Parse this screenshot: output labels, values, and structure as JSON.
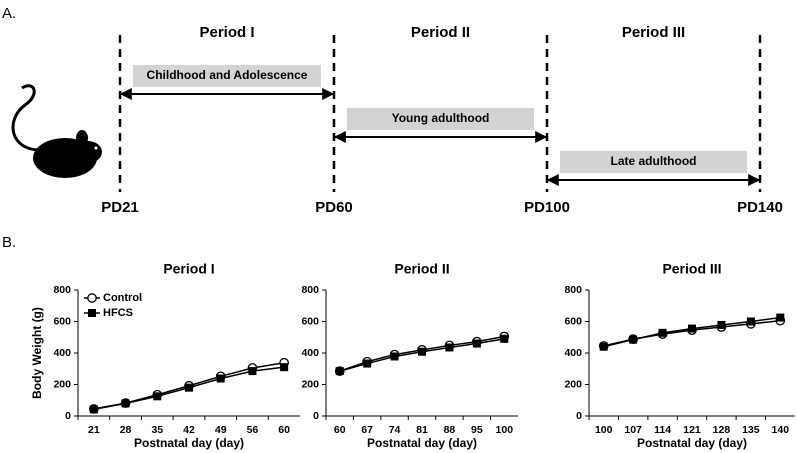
{
  "panel_labels": [
    "A.",
    "B."
  ],
  "timeline": {
    "periods": [
      "Period I",
      "Period II",
      "Period III"
    ],
    "stages": [
      "Childhood and Adolescence",
      "Young adulthood",
      "Late adulthood"
    ],
    "points": [
      "PD21",
      "PD60",
      "PD100",
      "PD140"
    ]
  },
  "chart_data": [
    {
      "type": "line",
      "title": "Period I",
      "ylabel": "Body Weight (g)",
      "xlabel": "Postnatal day (day)",
      "categories": [
        "21",
        "28",
        "35",
        "42",
        "49",
        "56",
        "60"
      ],
      "ylim": [
        0,
        800
      ],
      "yticks": [
        0,
        200,
        400,
        600,
        800
      ],
      "legend": "upper left",
      "series": [
        {
          "name": "Control",
          "color": "#000000",
          "marker": "circle-open",
          "values": [
            45,
            82,
            135,
            192,
            252,
            305,
            338
          ]
        },
        {
          "name": "HFCS",
          "color": "#000000",
          "marker": "square",
          "values": [
            42,
            80,
            125,
            180,
            238,
            285,
            310
          ]
        }
      ]
    },
    {
      "type": "line",
      "title": "Period II",
      "xlabel": "Postnatal day (day)",
      "categories": [
        "60",
        "67",
        "74",
        "81",
        "88",
        "95",
        "100"
      ],
      "ylim": [
        0,
        800
      ],
      "yticks": [
        0,
        200,
        400,
        600,
        800
      ],
      "series": [
        {
          "color": "#000000",
          "marker": "circle-open",
          "values": [
            285,
            345,
            390,
            420,
            448,
            472,
            505
          ]
        },
        {
          "color": "#000000",
          "marker": "square",
          "values": [
            285,
            333,
            378,
            408,
            435,
            460,
            490
          ]
        }
      ]
    },
    {
      "type": "line",
      "title": "Period III",
      "xlabel": "Postnatal day (day)",
      "categories": [
        "100",
        "107",
        "114",
        "121",
        "128",
        "135",
        "140"
      ],
      "ylim": [
        0,
        800
      ],
      "yticks": [
        0,
        200,
        400,
        600,
        800
      ],
      "series": [
        {
          "color": "#000000",
          "marker": "circle-open",
          "values": [
            445,
            488,
            520,
            545,
            565,
            585,
            605
          ]
        },
        {
          "color": "#000000",
          "marker": "square",
          "values": [
            440,
            485,
            528,
            555,
            578,
            600,
            625
          ]
        }
      ]
    }
  ]
}
